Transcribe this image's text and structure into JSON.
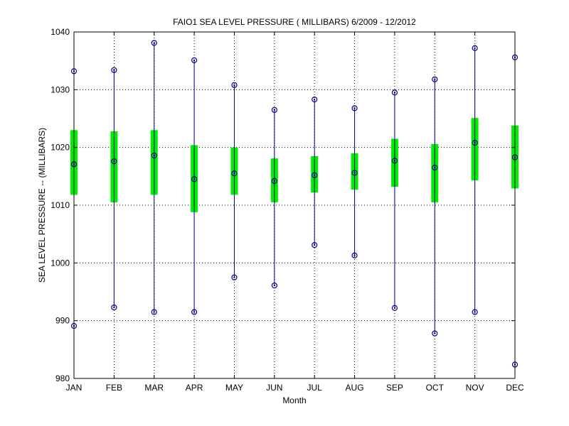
{
  "chart_data": {
    "type": "box",
    "title": "FAIO1  SEA LEVEL PRESSURE ( MILLIBARS) 6/2009 - 12/2012",
    "xlabel": "Month",
    "ylabel": "SEA LEVEL PRESSURE -- (MILLIBARS)",
    "ylim": [
      980,
      1040
    ],
    "yticks": [
      980,
      990,
      1000,
      1010,
      1020,
      1030,
      1040
    ],
    "grid": true,
    "categories": [
      "JAN",
      "FEB",
      "MAR",
      "APR",
      "MAY",
      "JUN",
      "JUL",
      "AUG",
      "SEP",
      "OCT",
      "NOV",
      "DEC"
    ],
    "series": [
      {
        "min": [
          989.1,
          992.3,
          991.5,
          991.5,
          997.5,
          996.1,
          1003.1,
          1001.3,
          992.2,
          987.8,
          991.5,
          982.4
        ],
        "q1": [
          1011.8,
          1010.5,
          1011.8,
          1008.8,
          1011.8,
          1010.5,
          1012.2,
          1012.7,
          1013.2,
          1010.5,
          1014.3,
          1012.9
        ],
        "mean": [
          1017.1,
          1017.6,
          1018.6,
          1014.5,
          1015.5,
          1014.2,
          1015.2,
          1015.6,
          1017.7,
          1016.5,
          1020.8,
          1018.3
        ],
        "q3": [
          1023.0,
          1022.8,
          1023.0,
          1020.4,
          1020.0,
          1018.1,
          1018.5,
          1019.0,
          1021.5,
          1020.6,
          1025.1,
          1023.8
        ],
        "max": [
          1033.2,
          1033.4,
          1038.1,
          1035.1,
          1030.8,
          1026.5,
          1028.3,
          1026.8,
          1029.5,
          1031.8,
          1037.2,
          1035.6
        ]
      }
    ],
    "colors": {
      "box": "#00ee00",
      "whisker": "#000080",
      "marker": "#000080",
      "grid": "#000000"
    }
  }
}
